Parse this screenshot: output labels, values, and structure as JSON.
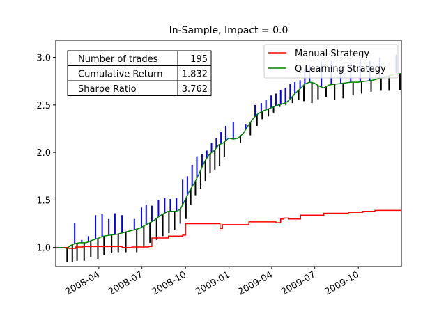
{
  "chart_data": {
    "type": "line",
    "title": "In-Sample, Impact = 0.0",
    "xlabel": "",
    "ylabel": "",
    "xlim": [
      "2008-01-01",
      "2009-12-31"
    ],
    "ylim": [
      0.8,
      3.18
    ],
    "grid": false,
    "legend_position": "top-right",
    "x_ticks": [
      "2008-04",
      "2008-07",
      "2008-10",
      "2009-01",
      "2009-04",
      "2009-07",
      "2009-10"
    ],
    "y_ticks": [
      "1.0",
      "1.5",
      "2.0",
      "2.5",
      "3.0"
    ],
    "stats_table": [
      {
        "label": "Number of trades",
        "value": "195"
      },
      {
        "label": "Cumulative Return",
        "value": "1.832"
      },
      {
        "label": "Sharpe Ratio",
        "value": "3.762"
      }
    ],
    "colors": {
      "manual": "#ff0000",
      "qlearning": "#008000",
      "long_entry": "#0000ff",
      "short_entry": "#000000"
    },
    "series": [
      {
        "name": "Manual Strategy",
        "color": "#ff0000",
        "step": true,
        "points": [
          [
            "2008-01-02",
            1.0
          ],
          [
            "2008-01-28",
            0.99
          ],
          [
            "2008-02-12",
            1.005
          ],
          [
            "2008-02-27",
            1.01
          ],
          [
            "2008-04-15",
            1.01
          ],
          [
            "2008-05-20",
            1.0
          ],
          [
            "2008-06-10",
            1.005
          ],
          [
            "2008-07-15",
            1.01
          ],
          [
            "2008-07-22",
            1.1
          ],
          [
            "2008-08-15",
            1.1
          ],
          [
            "2008-08-26",
            1.12
          ],
          [
            "2008-09-25",
            1.13
          ],
          [
            "2008-10-01",
            1.25
          ],
          [
            "2008-12-10",
            1.25
          ],
          [
            "2008-12-13",
            1.2
          ],
          [
            "2008-12-18",
            1.24
          ],
          [
            "2009-01-20",
            1.24
          ],
          [
            "2009-02-12",
            1.27
          ],
          [
            "2009-03-25",
            1.27
          ],
          [
            "2009-04-10",
            1.26
          ],
          [
            "2009-04-20",
            1.3
          ],
          [
            "2009-04-27",
            1.31
          ],
          [
            "2009-05-06",
            1.3
          ],
          [
            "2009-06-01",
            1.34
          ],
          [
            "2009-07-20",
            1.36
          ],
          [
            "2009-09-10",
            1.37
          ],
          [
            "2009-10-10",
            1.38
          ],
          [
            "2009-11-05",
            1.39
          ],
          [
            "2009-12-31",
            1.39
          ]
        ]
      },
      {
        "name": "Q Learning Strategy",
        "color": "#008000",
        "step": false,
        "points": [
          [
            "2008-01-02",
            1.0
          ],
          [
            "2008-01-15",
            1.0
          ],
          [
            "2008-01-25",
            0.99
          ],
          [
            "2008-02-01",
            1.02
          ],
          [
            "2008-02-10",
            1.04
          ],
          [
            "2008-02-20",
            1.05
          ],
          [
            "2008-03-05",
            1.05
          ],
          [
            "2008-03-20",
            1.08
          ],
          [
            "2008-04-01",
            1.1
          ],
          [
            "2008-04-10",
            1.12
          ],
          [
            "2008-04-25",
            1.13
          ],
          [
            "2008-05-10",
            1.14
          ],
          [
            "2008-05-25",
            1.16
          ],
          [
            "2008-06-10",
            1.18
          ],
          [
            "2008-06-25",
            1.2
          ],
          [
            "2008-07-10",
            1.24
          ],
          [
            "2008-07-25",
            1.28
          ],
          [
            "2008-08-10",
            1.34
          ],
          [
            "2008-08-25",
            1.38
          ],
          [
            "2008-09-10",
            1.38
          ],
          [
            "2008-09-20",
            1.4
          ],
          [
            "2008-09-30",
            1.5
          ],
          [
            "2008-10-10",
            1.6
          ],
          [
            "2008-10-20",
            1.68
          ],
          [
            "2008-10-30",
            1.78
          ],
          [
            "2008-11-10",
            1.9
          ],
          [
            "2008-11-20",
            1.98
          ],
          [
            "2008-12-01",
            2.02
          ],
          [
            "2008-12-10",
            2.08
          ],
          [
            "2008-12-20",
            2.1
          ],
          [
            "2008-12-31",
            2.15
          ],
          [
            "2009-01-10",
            2.14
          ],
          [
            "2009-01-20",
            2.15
          ],
          [
            "2009-01-31",
            2.2
          ],
          [
            "2009-02-10",
            2.28
          ],
          [
            "2009-02-20",
            2.35
          ],
          [
            "2009-03-01",
            2.4
          ],
          [
            "2009-03-15",
            2.44
          ],
          [
            "2009-03-31",
            2.47
          ],
          [
            "2009-04-15",
            2.5
          ],
          [
            "2009-04-30",
            2.52
          ],
          [
            "2009-05-10",
            2.56
          ],
          [
            "2009-05-20",
            2.62
          ],
          [
            "2009-05-31",
            2.67
          ],
          [
            "2009-06-10",
            2.72
          ],
          [
            "2009-06-20",
            2.74
          ],
          [
            "2009-06-30",
            2.73
          ],
          [
            "2009-07-10",
            2.7
          ],
          [
            "2009-07-20",
            2.68
          ],
          [
            "2009-07-31",
            2.71
          ],
          [
            "2009-08-15",
            2.72
          ],
          [
            "2009-08-31",
            2.73
          ],
          [
            "2009-09-15",
            2.74
          ],
          [
            "2009-09-30",
            2.74
          ],
          [
            "2009-10-15",
            2.75
          ],
          [
            "2009-10-31",
            2.76
          ],
          [
            "2009-11-15",
            2.78
          ],
          [
            "2009-11-30",
            2.8
          ],
          [
            "2009-12-15",
            2.82
          ],
          [
            "2009-12-31",
            2.83
          ]
        ]
      }
    ],
    "trade_markers": {
      "long_top_values": [
        1.02,
        1.26,
        1.08,
        1.12,
        1.34,
        1.35,
        1.3,
        1.36,
        1.34,
        1.3,
        1.42,
        1.45,
        1.44,
        1.5,
        1.52,
        1.51,
        1.52,
        1.72,
        1.75,
        1.87,
        1.96,
        1.98,
        2.02,
        2.1,
        2.15,
        2.22,
        2.28,
        2.32,
        2.3,
        2.5,
        2.52,
        2.55,
        2.6,
        2.62,
        2.66,
        2.68,
        2.72,
        2.74,
        2.76,
        2.88,
        2.92,
        2.95,
        2.97,
        2.9,
        2.94,
        2.98,
        2.97,
        3.0,
        3.03
      ],
      "long_dates": [
        "2008-01-30",
        "2008-02-10",
        "2008-02-25",
        "2008-03-10",
        "2008-03-25",
        "2008-04-08",
        "2008-04-22",
        "2008-05-05",
        "2008-05-20",
        "2008-06-15",
        "2008-06-30",
        "2008-07-10",
        "2008-07-22",
        "2008-08-05",
        "2008-08-18",
        "2008-08-30",
        "2008-09-12",
        "2008-09-25",
        "2008-10-05",
        "2008-10-15",
        "2008-10-25",
        "2008-11-05",
        "2008-11-15",
        "2008-11-25",
        "2008-12-05",
        "2008-12-15",
        "2008-12-25",
        "2009-01-10",
        "2009-02-05",
        "2009-02-25",
        "2009-03-10",
        "2009-03-20",
        "2009-03-31",
        "2009-04-10",
        "2009-04-20",
        "2009-04-30",
        "2009-05-10",
        "2009-05-20",
        "2009-05-31",
        "2009-06-10",
        "2009-06-20",
        "2009-07-15",
        "2009-08-05",
        "2009-08-25",
        "2009-09-15",
        "2009-10-05",
        "2009-10-25",
        "2009-11-15",
        "2009-12-20"
      ],
      "short_bottom_values": [
        0.85,
        0.85,
        0.86,
        0.86,
        0.9,
        0.88,
        0.92,
        0.94,
        0.95,
        0.95,
        0.95,
        1.0,
        1.05,
        1.08,
        1.12,
        1.15,
        1.18,
        1.25,
        1.3,
        1.45,
        1.55,
        1.62,
        1.7,
        1.78,
        1.82,
        1.86,
        1.95,
        2.1,
        2.18,
        2.28,
        2.35,
        2.38,
        2.42,
        2.48,
        2.5,
        2.52,
        2.55,
        2.54,
        2.52,
        2.56,
        2.58,
        2.55,
        2.57,
        2.6,
        2.62,
        2.64,
        2.65,
        2.65,
        2.66
      ],
      "short_dates": [
        "2008-01-25",
        "2008-02-05",
        "2008-02-15",
        "2008-03-01",
        "2008-03-15",
        "2008-03-30",
        "2008-04-12",
        "2008-04-28",
        "2008-05-12",
        "2008-05-28",
        "2008-06-20",
        "2008-07-05",
        "2008-07-18",
        "2008-08-01",
        "2008-08-14",
        "2008-08-27",
        "2008-09-08",
        "2008-09-20",
        "2008-10-02",
        "2008-10-12",
        "2008-10-22",
        "2008-11-02",
        "2008-11-12",
        "2008-11-22",
        "2008-12-02",
        "2008-12-12",
        "2008-12-22",
        "2009-01-25",
        "2009-02-15",
        "2009-03-01",
        "2009-03-12",
        "2009-03-25",
        "2009-04-05",
        "2009-04-18",
        "2009-05-01",
        "2009-05-15",
        "2009-05-28",
        "2009-06-08",
        "2009-06-25",
        "2009-07-08",
        "2009-07-25",
        "2009-08-12",
        "2009-08-30",
        "2009-09-20",
        "2009-10-08",
        "2009-10-28",
        "2009-11-18",
        "2009-12-05",
        "2009-12-28"
      ]
    }
  }
}
